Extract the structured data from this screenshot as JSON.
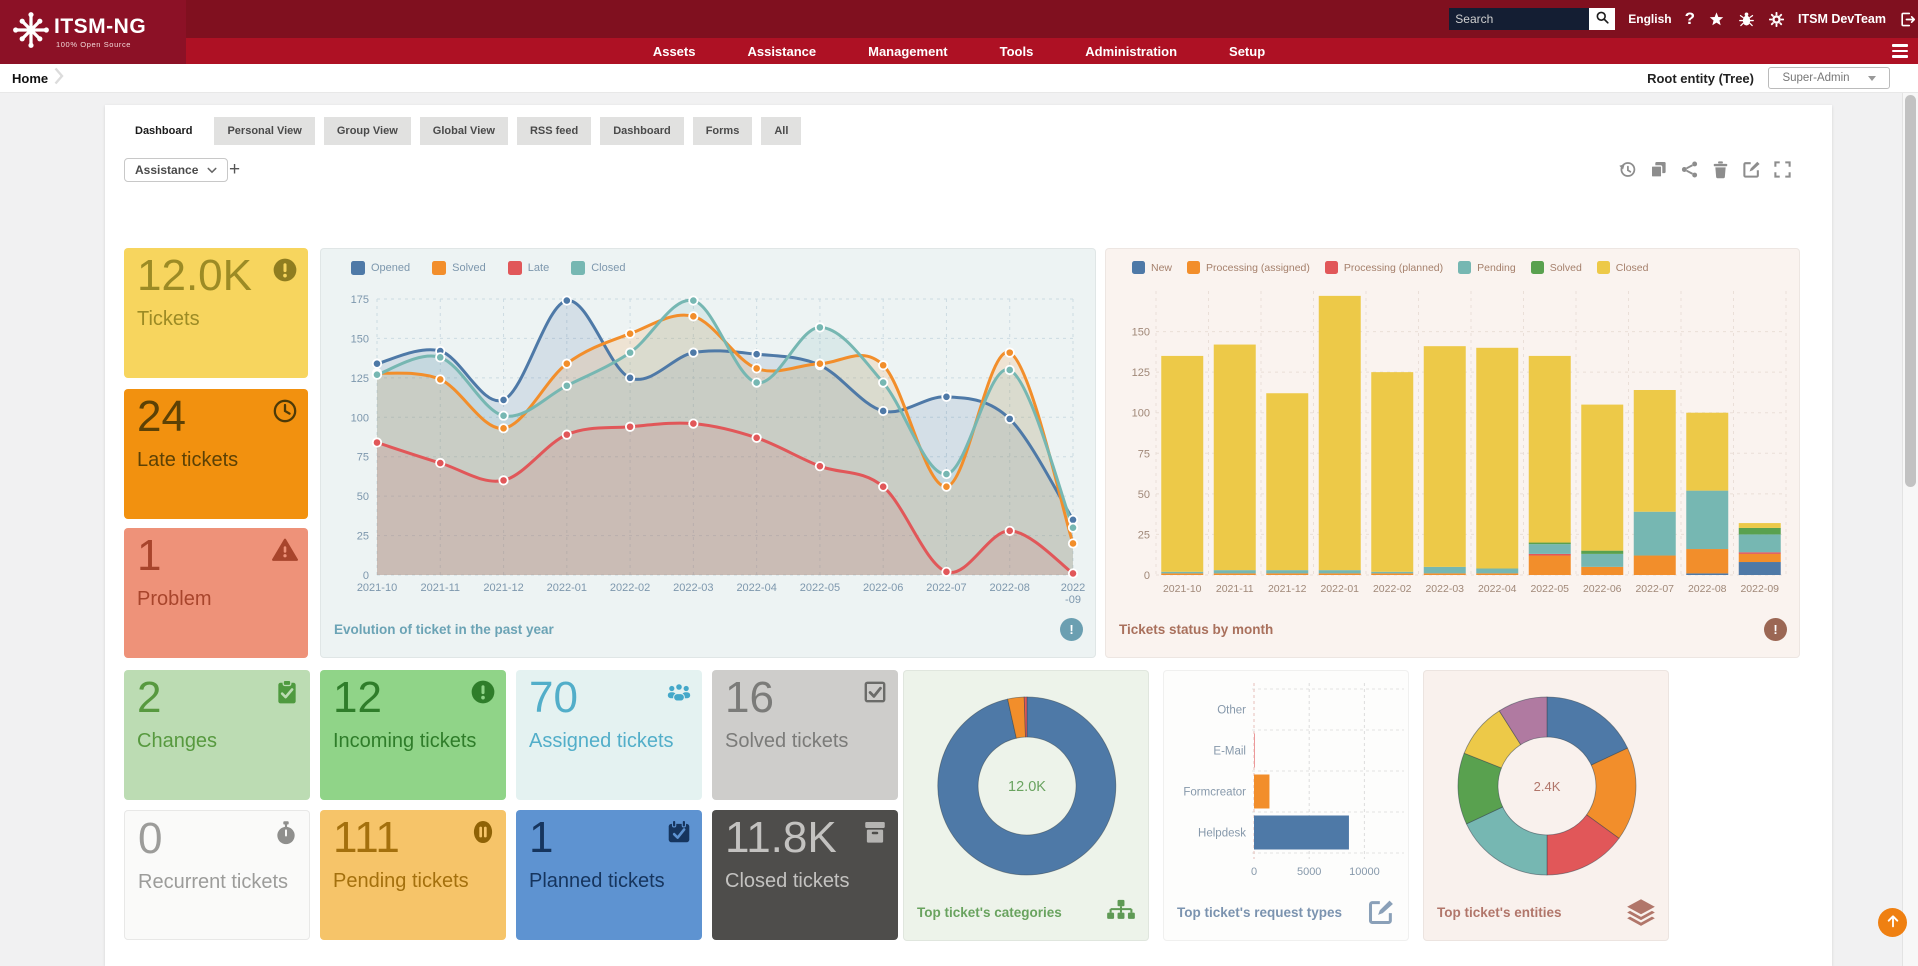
{
  "header": {
    "brand": "ITSM-NG",
    "tagline": "100% Open Source",
    "nav": [
      "Assets",
      "Assistance",
      "Management",
      "Tools",
      "Administration",
      "Setup"
    ],
    "search_placeholder": "Search",
    "language": "English",
    "user": "ITSM DevTeam"
  },
  "breadcrumb": {
    "home": "Home"
  },
  "entity_bar": {
    "label": "Root entity (Tree)",
    "profile": "Super-Admin"
  },
  "tabs": [
    "Dashboard",
    "Personal View",
    "Group View",
    "Global View",
    "RSS feed",
    "Dashboard",
    "Forms",
    "All"
  ],
  "toolbar": {
    "dashboard_selector": "Assistance",
    "add_label": "+",
    "tools": [
      "history",
      "clone",
      "share",
      "delete",
      "edit",
      "fullscreen"
    ]
  },
  "cards": [
    {
      "value": "12.0K",
      "label": "Tickets",
      "icon": "exclamation-circle",
      "bg": "#f7d55e",
      "fg": "#9c8b25",
      "icon_color": "#8f7d20"
    },
    {
      "value": "24",
      "label": "Late tickets",
      "icon": "clock",
      "bg": "#f2910f",
      "fg": "#5c4105",
      "icon_color": "#4d3a08"
    },
    {
      "value": "1",
      "label": "Problem",
      "icon": "warning-triangle",
      "bg": "#ee9279",
      "fg": "#a8452c",
      "icon_color": "#a8452c"
    },
    {
      "value": "2",
      "label": "Changes",
      "icon": "clipboard-check",
      "bg": "#bcdcb3",
      "fg": "#57993f",
      "icon_color": "#4f9a3f"
    },
    {
      "value": "12",
      "label": "Incoming tickets",
      "icon": "exclamation-circle",
      "bg": "#90d488",
      "fg": "#2f7d2a",
      "icon_color": "#2f7d2a"
    },
    {
      "value": "70",
      "label": "Assigned tickets",
      "icon": "users",
      "bg": "#e4f2f1",
      "fg": "#52aec9",
      "icon_color": "#44a8c9"
    },
    {
      "value": "16",
      "label": "Solved tickets",
      "icon": "checkbox",
      "bg": "#cecdcb",
      "fg": "#7b7b79",
      "icon_color": "#6b6b69"
    },
    {
      "value": "0",
      "label": "Recurrent tickets",
      "icon": "stopwatch",
      "bg": "#fafaf9",
      "fg": "#9c9c9a",
      "icon_color": "#8f8f8d"
    },
    {
      "value": "111",
      "label": "Pending tickets",
      "icon": "pause-circle",
      "bg": "#f6c469",
      "fg": "#a4700d",
      "icon_color": "#8f6206"
    },
    {
      "value": "1",
      "label": "Planned tickets",
      "icon": "calendar-check",
      "bg": "#5e93d1",
      "fg": "#16355e",
      "icon_color": "#16355e"
    },
    {
      "value": "11.8K",
      "label": "Closed tickets",
      "icon": "archive",
      "bg": "#4e4d4b",
      "fg": "#c3c2c0",
      "icon_color": "#b5b4b2"
    }
  ],
  "widgets": {
    "evolution": {
      "title": "Evolution of ticket in the past year",
      "color": "#6ba3b5",
      "icon_color": "#6b9fb1",
      "bg": "#edf3f3"
    },
    "status_by_month": {
      "title": "Tickets status by month",
      "color": "#a9705c",
      "icon_color": "#9b6754",
      "bg": "#faf3ef"
    },
    "categories": {
      "title": "Top ticket's categories",
      "color": "#69a35f",
      "icon_color": "#5f9a55",
      "bg": "#edf3ea"
    },
    "request_types": {
      "title": "Top ticket's request types",
      "color": "#7b93af",
      "icon_color": "#8aa0b8",
      "bg": "#fdfdfc"
    },
    "entities": {
      "title": "Top ticket's entities",
      "color": "#b1766a",
      "icon_color": "#b1766a",
      "bg": "#f9f1ed"
    }
  },
  "chart_data": [
    {
      "id": "evolution",
      "type": "line",
      "title": "Evolution of ticket in the past year",
      "x": [
        "2021-10",
        "2021-11",
        "2021-12",
        "2022-01",
        "2022-02",
        "2022-03",
        "2022-04",
        "2022-05",
        "2022-06",
        "2022-07",
        "2022-08",
        "2022-09"
      ],
      "yticks": [
        0,
        25,
        50,
        75,
        100,
        125,
        150,
        175
      ],
      "ylim": [
        0,
        175
      ],
      "grid": true,
      "legend_position": "top",
      "series": [
        {
          "name": "Opened",
          "color": "#4e79a7",
          "values": [
            134,
            142,
            111,
            174,
            125,
            141,
            140,
            133,
            104,
            113,
            99,
            35
          ]
        },
        {
          "name": "Solved",
          "color": "#f28e2b",
          "values": [
            128,
            124,
            93,
            134,
            153,
            164,
            131,
            134,
            133,
            56,
            141,
            20
          ]
        },
        {
          "name": "Late",
          "color": "#e15759",
          "values": [
            84,
            71,
            60,
            89,
            94,
            96,
            87,
            69,
            56,
            2,
            28,
            1
          ]
        },
        {
          "name": "Closed",
          "color": "#76b7b2",
          "values": [
            127,
            138,
            101,
            120,
            141,
            174,
            122,
            157,
            122,
            64,
            130,
            30
          ]
        }
      ]
    },
    {
      "id": "status_by_month",
      "type": "bar",
      "stacked": true,
      "title": "Tickets status by month",
      "categories": [
        "2021-10",
        "2021-11",
        "2021-12",
        "2022-01",
        "2022-02",
        "2022-03",
        "2022-04",
        "2022-05",
        "2022-06",
        "2022-07",
        "2022-08",
        "2022-09"
      ],
      "yticks": [
        0,
        25,
        50,
        75,
        100,
        125,
        150
      ],
      "ylim": [
        0,
        175
      ],
      "grid": true,
      "legend_position": "top",
      "series": [
        {
          "name": "New",
          "color": "#4e79a7",
          "values": [
            0,
            0,
            0,
            0,
            0,
            0,
            0,
            0,
            0,
            0,
            1,
            8
          ]
        },
        {
          "name": "Processing (assigned)",
          "color": "#f28e2b",
          "values": [
            1,
            1,
            1,
            1,
            1,
            1,
            1,
            12,
            5,
            12,
            15,
            5
          ]
        },
        {
          "name": "Processing (planned)",
          "color": "#e15759",
          "values": [
            0,
            0,
            0,
            0,
            0,
            0,
            0,
            1,
            0,
            0,
            0,
            1
          ]
        },
        {
          "name": "Pending",
          "color": "#76b7b2",
          "values": [
            1,
            2,
            2,
            2,
            1,
            4,
            3,
            6,
            8,
            27,
            36,
            11
          ]
        },
        {
          "name": "Solved",
          "color": "#59a14f",
          "values": [
            0,
            0,
            0,
            0,
            0,
            0,
            0,
            1,
            2,
            0,
            0,
            4
          ]
        },
        {
          "name": "Closed",
          "color": "#edc948",
          "values": [
            133,
            139,
            109,
            169,
            123,
            136,
            136,
            115,
            90,
            75,
            48,
            3
          ]
        }
      ]
    },
    {
      "id": "categories",
      "type": "pie",
      "title": "Top ticket's categories",
      "center_label": "12.0K",
      "slices": [
        {
          "color": "#4e79a7",
          "value": 96.5
        },
        {
          "color": "#f28e2b",
          "value": 3
        },
        {
          "color": "#e15759",
          "value": 0.5
        }
      ]
    },
    {
      "id": "request_types",
      "type": "bar-horizontal",
      "title": "Top ticket's request types",
      "categories": [
        "Other",
        "E-Mail",
        "Formcreator",
        "Helpdesk"
      ],
      "values": [
        0,
        40,
        1400,
        8600
      ],
      "colors": [
        "#bab0ac",
        "#e15759",
        "#f28e2b",
        "#4e79a7"
      ],
      "xticks": [
        0,
        5000,
        10000
      ],
      "xlim": [
        0,
        12500
      ]
    },
    {
      "id": "entities",
      "type": "pie",
      "title": "Top ticket's entities",
      "center_label": "2.4K",
      "slices": [
        {
          "color": "#4e79a7",
          "value": 18
        },
        {
          "color": "#f28e2b",
          "value": 17
        },
        {
          "color": "#e15759",
          "value": 15
        },
        {
          "color": "#76b7b2",
          "value": 18
        },
        {
          "color": "#59a14f",
          "value": 13
        },
        {
          "color": "#edc948",
          "value": 10
        },
        {
          "color": "#b07aa1",
          "value": 9
        }
      ]
    }
  ]
}
